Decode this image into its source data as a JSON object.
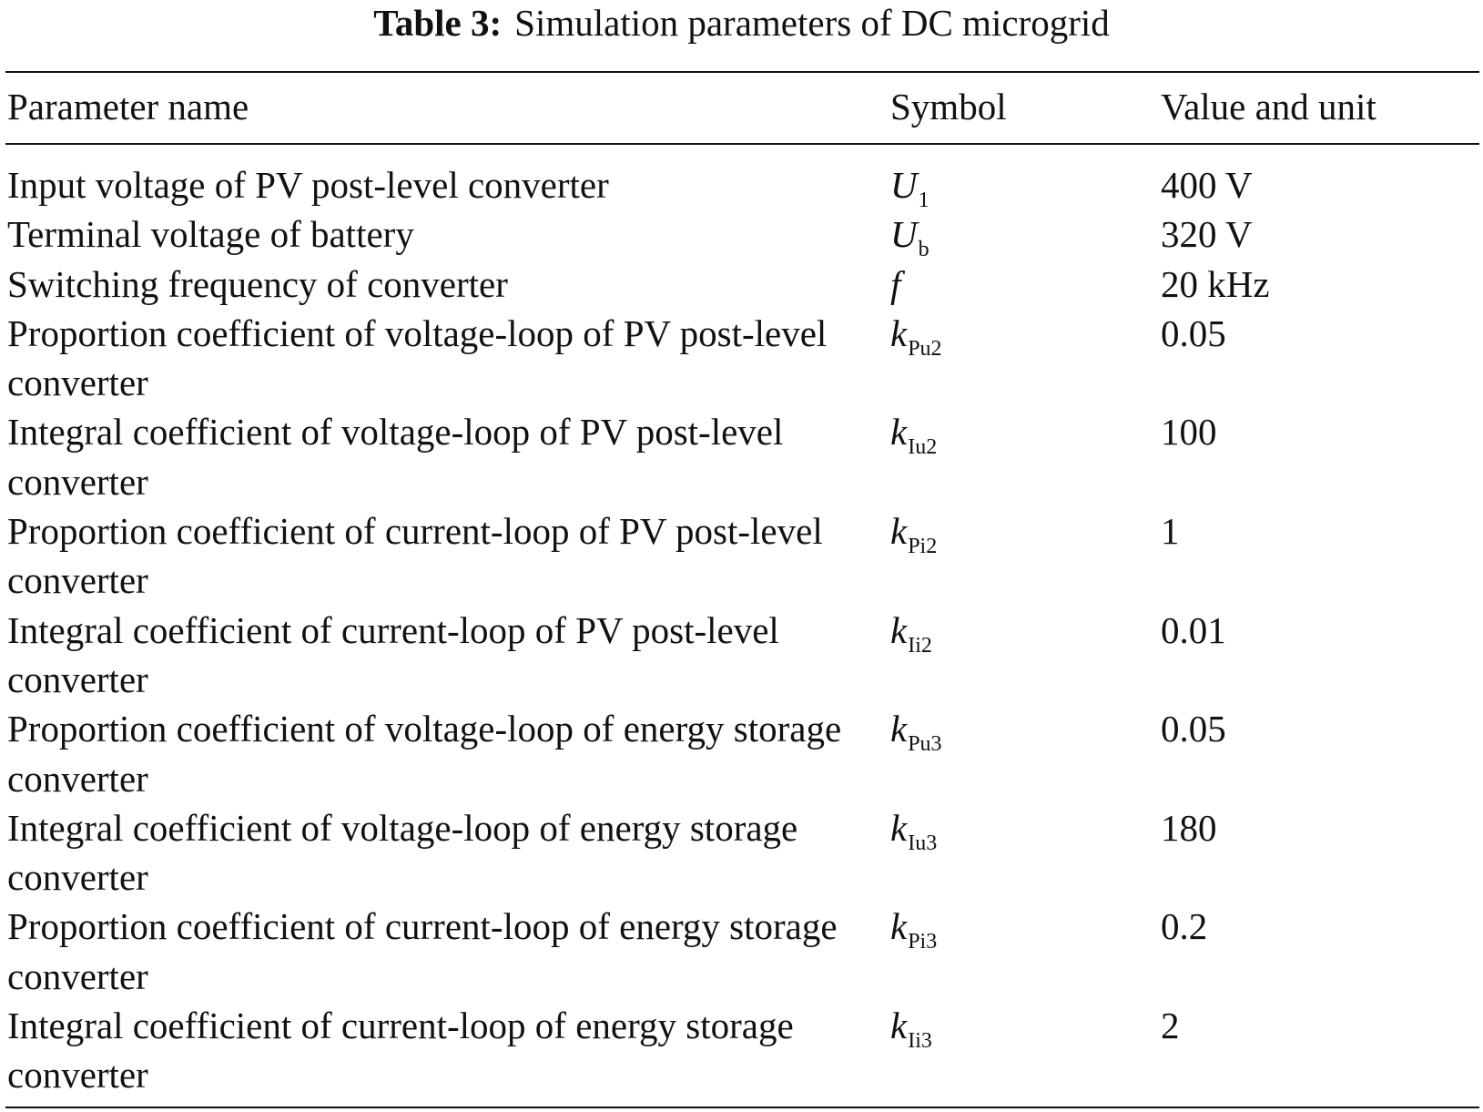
{
  "caption": {
    "label": "Table 3:",
    "text": "Simulation parameters of DC microgrid"
  },
  "columns": {
    "name": "Parameter name",
    "symbol": "Symbol",
    "value": "Value and unit"
  },
  "rows": [
    {
      "name": "Input voltage of PV post-level converter",
      "symbol": "U",
      "sub": "1",
      "value": "400 V"
    },
    {
      "name": "Terminal voltage of battery",
      "symbol": "U",
      "sub": "b",
      "value": "320 V"
    },
    {
      "name": "Switching frequency of converter",
      "symbol": "f",
      "sub": "",
      "value": "20 kHz"
    },
    {
      "name": "Proportion coefficient of voltage-loop of PV post-level converter",
      "symbol": "k",
      "sub": "Pu2",
      "value": "0.05"
    },
    {
      "name": "Integral coefficient of voltage-loop of PV post-level converter",
      "symbol": "k",
      "sub": "Iu2",
      "value": "100"
    },
    {
      "name": "Proportion coefficient of current-loop of PV post-level converter",
      "symbol": "k",
      "sub": "Pi2",
      "value": "1"
    },
    {
      "name": "Integral coefficient of current-loop of PV post-level converter",
      "symbol": "k",
      "sub": "Ii2",
      "value": "0.01"
    },
    {
      "name": "Proportion coefficient of voltage-loop of energy storage converter",
      "symbol": "k",
      "sub": "Pu3",
      "value": "0.05"
    },
    {
      "name": "Integral coefficient of voltage-loop of energy storage converter",
      "symbol": "k",
      "sub": "Iu3",
      "value": "180"
    },
    {
      "name": "Proportion coefficient of current-loop of energy storage converter",
      "symbol": "k",
      "sub": "Pi3",
      "value": "0.2"
    },
    {
      "name": "Integral coefficient of current-loop of energy storage converter",
      "symbol": "k",
      "sub": "Ii3",
      "value": "2"
    }
  ]
}
